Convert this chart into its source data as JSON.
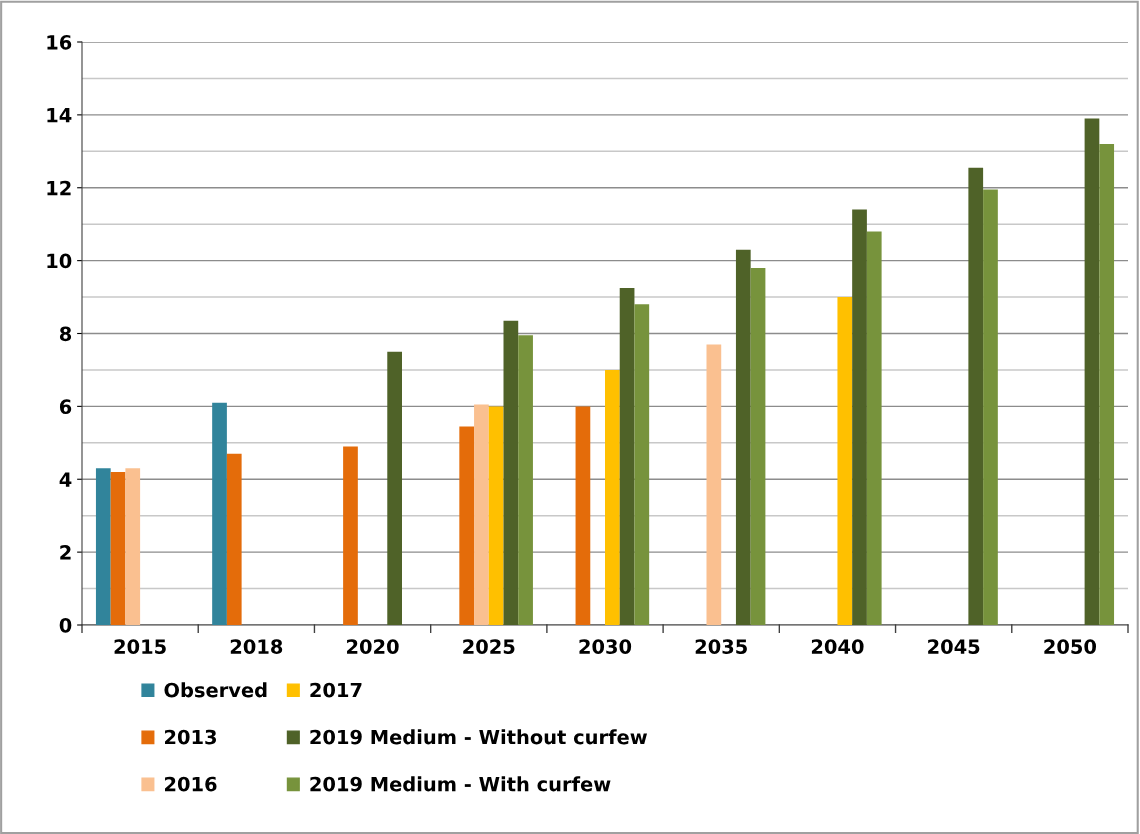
{
  "chart_data": {
    "type": "bar",
    "categories": [
      "2015",
      "2018",
      "2020",
      "2025",
      "2030",
      "2035",
      "2040",
      "2045",
      "2050"
    ],
    "series": [
      {
        "name": "Observed",
        "color": "#31849b",
        "values": [
          4.3,
          6.1,
          null,
          null,
          null,
          null,
          null,
          null,
          null
        ]
      },
      {
        "name": "2013",
        "color": "#e46c0a",
        "values": [
          4.2,
          4.7,
          4.9,
          5.45,
          6.0,
          null,
          null,
          null,
          null
        ]
      },
      {
        "name": "2016",
        "color": "#fac090",
        "values": [
          4.3,
          null,
          null,
          6.05,
          null,
          7.7,
          null,
          null,
          null
        ]
      },
      {
        "name": "2017",
        "color": "#ffc000",
        "values": [
          null,
          null,
          null,
          6.0,
          7.0,
          null,
          9.0,
          null,
          null
        ]
      },
      {
        "name": "2019 Medium - Without curfew",
        "color": "#4f6228",
        "values": [
          null,
          null,
          7.5,
          8.35,
          9.25,
          10.3,
          11.4,
          12.55,
          13.9
        ]
      },
      {
        "name": "2019 Medium - With curfew",
        "color": "#77933c",
        "values": [
          null,
          null,
          null,
          7.95,
          8.8,
          9.8,
          10.8,
          11.95,
          13.2
        ]
      }
    ],
    "ylim": [
      0,
      16
    ],
    "yticks": [
      0,
      {
        "value": 1,
        "label": null
      },
      2,
      {
        "value": 3,
        "label": null
      },
      4,
      {
        "value": 5,
        "label": null
      },
      6,
      {
        "value": 7,
        "label": null
      },
      8,
      {
        "value": 9,
        "label": null
      },
      10,
      {
        "value": 11,
        "label": null
      },
      12,
      {
        "value": 13,
        "label": null
      },
      14,
      {
        "value": 15,
        "label": null
      },
      16
    ],
    "grid": "y",
    "legend": "bottom"
  }
}
